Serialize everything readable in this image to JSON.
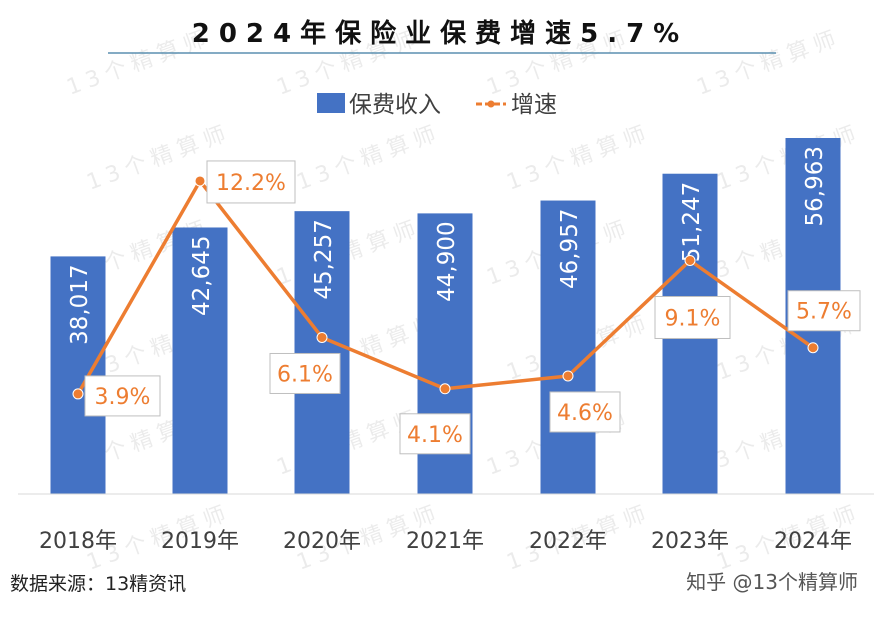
{
  "title": "2024年保险业保费增速5.7%",
  "watermark": "13个精算师",
  "source": "数据来源：13精资讯",
  "credit": "知乎 @13个精算师",
  "colors": {
    "bar": "#4472C4",
    "line": "#ED7D31",
    "text": "#404040"
  },
  "chart_data": {
    "type": "bar+line",
    "categories": [
      "2018年",
      "2019年",
      "2020年",
      "2021年",
      "2022年",
      "2023年",
      "2024年"
    ],
    "series": [
      {
        "name": "保费收入",
        "type": "bar",
        "values": [
          38017,
          42645,
          45257,
          44900,
          46957,
          51247,
          56963
        ],
        "labels": [
          "38,017",
          "42,645",
          "45,257",
          "44,900",
          "46,957",
          "51,247",
          "56,963"
        ]
      },
      {
        "name": "增速",
        "type": "line",
        "values": [
          3.9,
          12.2,
          6.1,
          4.1,
          4.6,
          9.1,
          5.7
        ],
        "labels": [
          "3.9%",
          "12.2%",
          "6.1%",
          "4.1%",
          "4.6%",
          "9.1%",
          "5.7%"
        ]
      }
    ],
    "legend": "top",
    "grid": false
  }
}
